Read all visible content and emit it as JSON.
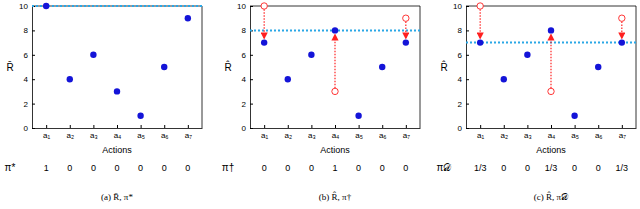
{
  "chart_data": [
    {
      "type": "scatter",
      "title": "(a) R̄, π*",
      "y_label": "R̄",
      "x_label": "Actions",
      "categories": [
        "a₁",
        "a₂",
        "a₃",
        "a₄",
        "a₅",
        "a₆",
        "a₇"
      ],
      "series": [
        {
          "color": "#1414d8",
          "marker": "circle",
          "values": [
            10,
            4,
            6,
            3,
            1,
            5,
            9
          ]
        }
      ],
      "reference_line": 10,
      "policy_label": "π*",
      "policy": [
        1,
        0,
        0,
        0,
        0,
        0,
        0
      ],
      "ylim": [
        0,
        10
      ],
      "yticks": [
        0,
        2,
        4,
        6,
        8,
        10
      ],
      "grid": false
    },
    {
      "type": "scatter",
      "title": "(b) R̂, π†",
      "y_label": "R̂",
      "x_label": "Actions",
      "categories": [
        "a₁",
        "a₂",
        "a₃",
        "a₄",
        "a₅",
        "a₆",
        "a₇"
      ],
      "series": [
        {
          "color": "#1414d8",
          "marker": "circle",
          "values": [
            7,
            4,
            6,
            8,
            1,
            5,
            7
          ]
        },
        {
          "color": "#ff2020",
          "marker": "open-circle",
          "values": [
            10,
            null,
            null,
            3,
            null,
            null,
            9
          ]
        }
      ],
      "reference_line": 8,
      "policy_label": "π†",
      "policy": [
        0,
        0,
        0,
        1,
        0,
        0,
        0
      ],
      "ylim": [
        0,
        10
      ],
      "yticks": [
        0,
        2,
        4,
        6,
        8,
        10
      ],
      "grid": false
    },
    {
      "type": "scatter",
      "title": "(c) R̂, π𝒟",
      "y_label": "R̂",
      "x_label": "Actions",
      "categories": [
        "a₁",
        "a₂",
        "a₃",
        "a₄",
        "a₅",
        "a₆",
        "a₇"
      ],
      "series": [
        {
          "color": "#1414d8",
          "marker": "circle",
          "values": [
            7,
            4,
            6,
            8,
            1,
            5,
            7
          ]
        },
        {
          "color": "#ff2020",
          "marker": "open-circle",
          "values": [
            10,
            null,
            null,
            3,
            null,
            null,
            9
          ]
        }
      ],
      "reference_line": 7,
      "policy_label": "π𝒟",
      "policy": [
        0.333,
        0,
        0,
        0.333,
        0,
        0,
        0.333
      ],
      "policy_labels": [
        "1/3",
        "0",
        "0",
        "1/3",
        "0",
        "0",
        "1/3"
      ],
      "ylim": [
        0,
        10
      ],
      "yticks": [
        0,
        2,
        4,
        6,
        8,
        10
      ],
      "grid": false
    }
  ]
}
